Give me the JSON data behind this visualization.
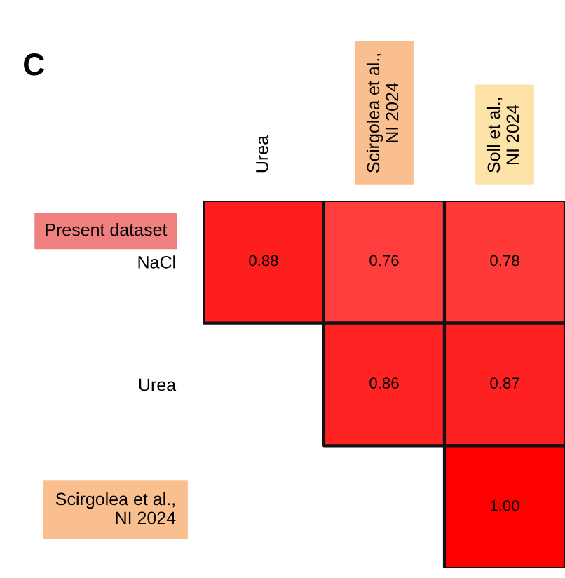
{
  "chart_data": {
    "type": "heatmap",
    "title": "C",
    "categories": [
      "Urea",
      "Scirgolea et al.,\nNI 2024",
      "Soll et al.,\nNI 2024"
    ],
    "y_categories": [
      "NaCl",
      "Urea",
      "Scirgolea et al.,\nNI 2024"
    ],
    "cells": [
      [
        0.88,
        0.76,
        0.78
      ],
      [
        null,
        0.86,
        0.87
      ],
      [
        null,
        null,
        1.0
      ]
    ],
    "cell_labels": [
      [
        "0.88",
        "0.76",
        "0.78"
      ],
      [
        null,
        "0.86",
        "0.87"
      ],
      [
        null,
        null,
        "1.00"
      ]
    ],
    "annotations": [
      "Present dataset"
    ]
  }
}
